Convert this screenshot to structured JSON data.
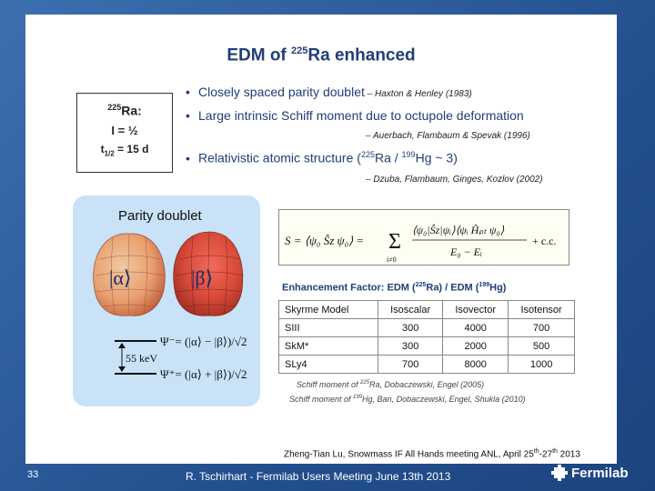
{
  "slide": {
    "title_prefix": "EDM of ",
    "title_mass": "225",
    "title_suffix": "Ra enhanced"
  },
  "ra_box": {
    "mass": "225",
    "element": "Ra:",
    "spin": "I = ½",
    "half_life_label": "t",
    "half_life_sub": "1/2",
    "half_life_value": " = 15 d"
  },
  "bullets": [
    {
      "text": "Closely spaced parity doublet",
      "cite": " – Haxton & Henley (1983)"
    },
    {
      "text": "Large intrinsic Schiff moment due to octupole deformation",
      "cite": "– Auerbach, Flambaum & Spevak (1996)"
    },
    {
      "text_a": "Relativistic atomic structure (",
      "sup1": "225",
      "text_b": "Ra / ",
      "sup2": "199",
      "text_c": "Hg ~ 3)",
      "cite": "– Dzuba, Flambaum, Ginges, Kozlov (2002)"
    }
  ],
  "doublet": {
    "title": "Parity doublet",
    "alpha": "|α⟩",
    "beta": "|β⟩",
    "energy": "55 keV",
    "psi_minus": "Ψ⁻= (|α⟩ − |β⟩)/√2",
    "psi_plus": "Ψ⁺= (|α⟩ + |β⟩)/√2"
  },
  "formula": {
    "lhs": "S = ⟨ψ₀ Ŝz ψ₀⟩ = ",
    "sum": "Σ",
    "sum_index": "i≠0",
    "numerator": "⟨ψ₀|Ŝz|ψᵢ⟩⟨ψᵢ Ĥₚₜ ψ₀⟩",
    "denominator": "E₀ − Eᵢ",
    "tail": "+ c.c."
  },
  "enhancement": {
    "title_a": "Enhancement Factor: EDM (",
    "sup1": "225",
    "title_b": "Ra) / EDM (",
    "sup2": "199",
    "title_c": "Hg)",
    "headers": [
      "Skyrme Model",
      "Isoscalar",
      "Isovector",
      "Isotensor"
    ],
    "rows": [
      [
        "SIII",
        "300",
        "4000",
        "700"
      ],
      [
        "SkM*",
        "300",
        "2000",
        "500"
      ],
      [
        "SLy4",
        "700",
        "8000",
        "1000"
      ]
    ],
    "ref1_a": "Schiff moment of ",
    "ref1_sup": "225",
    "ref1_b": "Ra, Dobaczewski, Engel (2005)",
    "ref2_a": "Schiff moment of ",
    "ref2_sup": "199",
    "ref2_b": "Hg, Ban, Dobaczewski, Engel, Shukla (2010)"
  },
  "footer": {
    "note_a": "Zheng-Tian Lu, Snowmass IF All Hands meeting ANL, April 25",
    "note_sup1": "th",
    "note_b": "-27",
    "note_sup2": "th",
    "note_c": " 2013",
    "page_number": "33",
    "presenter": "R. Tschirhart - Fermilab Users Meeting June 13th 2013",
    "logo_text": "Fermilab"
  },
  "colors": {
    "background": "#2a5a9a",
    "title": "#1f3e7a",
    "panel": "#c9e2f7",
    "nucleus_red": "#d84a3a",
    "nucleus_orange": "#e8a070"
  }
}
